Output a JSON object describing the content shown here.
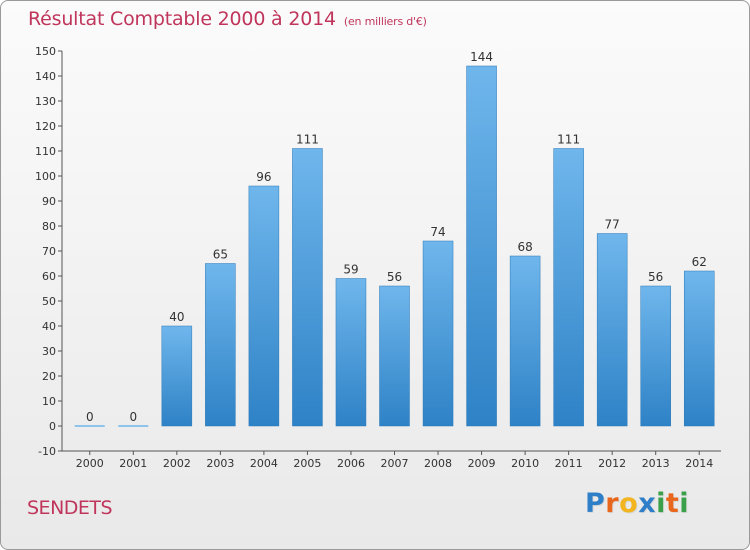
{
  "header": {
    "title": "Résultat Comptable 2000 à 2014",
    "subtitle": "(en milliers d'€)"
  },
  "footer": {
    "place": "SENDETS",
    "logo_letters": [
      "P",
      "r",
      "o",
      "x",
      "i",
      "t",
      "i"
    ],
    "logo_colors": [
      "#2f7fc8",
      "#e8671c",
      "#f2b51f",
      "#2f7fc8",
      "#3aa14a",
      "#e8671c",
      "#3aa14a"
    ]
  },
  "colors": {
    "bar_light": "#6fb6ec",
    "bar_dark": "#2e82c6",
    "title": "#c0355b"
  },
  "chart_data": {
    "type": "bar",
    "title": "Résultat Comptable 2000 à 2014",
    "xlabel": "",
    "ylabel": "",
    "categories": [
      "2000",
      "2001",
      "2002",
      "2003",
      "2004",
      "2005",
      "2006",
      "2007",
      "2008",
      "2009",
      "2010",
      "2011",
      "2012",
      "2013",
      "2014"
    ],
    "values": [
      0,
      0,
      40,
      65,
      96,
      111,
      59,
      56,
      74,
      144,
      68,
      111,
      77,
      56,
      62
    ],
    "ylim": [
      -10,
      150
    ],
    "yticks": [
      -10,
      0,
      10,
      20,
      30,
      40,
      50,
      60,
      70,
      80,
      90,
      100,
      110,
      120,
      130,
      140,
      150
    ],
    "grid": false,
    "legend": "none"
  }
}
